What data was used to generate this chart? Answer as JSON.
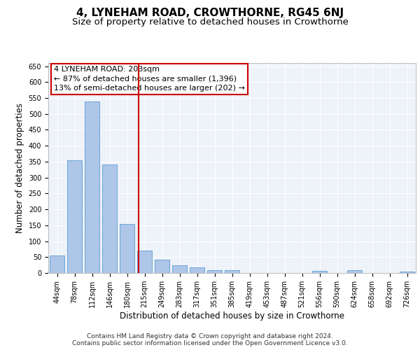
{
  "title": "4, LYNEHAM ROAD, CROWTHORNE, RG45 6NJ",
  "subtitle": "Size of property relative to detached houses in Crowthorne",
  "xlabel": "Distribution of detached houses by size in Crowthorne",
  "ylabel": "Number of detached properties",
  "categories": [
    "44sqm",
    "78sqm",
    "112sqm",
    "146sqm",
    "180sqm",
    "215sqm",
    "249sqm",
    "283sqm",
    "317sqm",
    "351sqm",
    "385sqm",
    "419sqm",
    "453sqm",
    "487sqm",
    "521sqm",
    "556sqm",
    "590sqm",
    "624sqm",
    "658sqm",
    "692sqm",
    "726sqm"
  ],
  "values": [
    55,
    355,
    540,
    340,
    155,
    70,
    42,
    25,
    18,
    8,
    8,
    0,
    0,
    0,
    0,
    6,
    0,
    8,
    0,
    0,
    5
  ],
  "bar_color": "#aec6e8",
  "bar_edge_color": "#5a9fd4",
  "background_color": "#eef2f9",
  "grid_color": "#ffffff",
  "vline_color": "#cc0000",
  "annotation_text": "4 LYNEHAM ROAD: 203sqm\n← 87% of detached houses are smaller (1,396)\n13% of semi-detached houses are larger (202) →",
  "annotation_box_color": "#cc0000",
  "ylim": [
    0,
    660
  ],
  "yticks": [
    0,
    50,
    100,
    150,
    200,
    250,
    300,
    350,
    400,
    450,
    500,
    550,
    600,
    650
  ],
  "footnote_line1": "Contains HM Land Registry data © Crown copyright and database right 2024.",
  "footnote_line2": "Contains public sector information licensed under the Open Government Licence v3.0.",
  "title_fontsize": 11,
  "subtitle_fontsize": 9.5,
  "xlabel_fontsize": 8.5,
  "ylabel_fontsize": 8.5,
  "tick_fontsize": 7,
  "annotation_fontsize": 8,
  "footnote_fontsize": 6.5
}
